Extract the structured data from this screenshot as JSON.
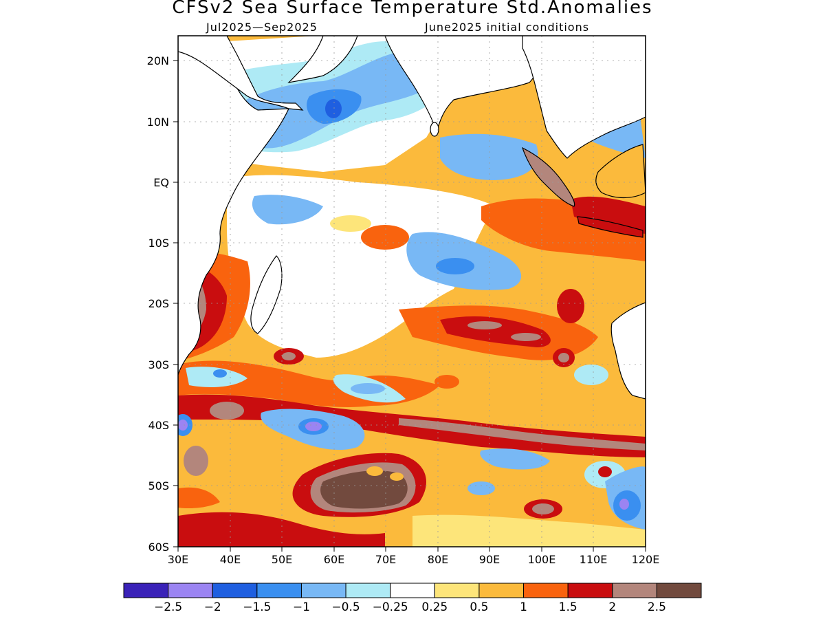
{
  "title": "CFSv2 Sea Surface Temperature Std.Anomalies",
  "subtitle_left": "Jul2025—Sep2025",
  "subtitle_right": "June2025 initial conditions",
  "lat_labels": [
    "20N",
    "10N",
    "EQ",
    "10S",
    "20S",
    "30S",
    "40S",
    "50S",
    "60S"
  ],
  "lon_labels": [
    "30E",
    "40E",
    "50E",
    "60E",
    "70E",
    "80E",
    "90E",
    "100E",
    "110E",
    "120E"
  ],
  "colorbar": {
    "colors": [
      "#3a22b8",
      "#9b84f2",
      "#1f5fe0",
      "#3a8ff0",
      "#78b8f5",
      "#aeeaf5",
      "#ffffff",
      "#fde57a",
      "#fbba3c",
      "#f9630e",
      "#c90d0f",
      "#b3867c",
      "#724a3e"
    ],
    "labels": [
      "−2.5",
      "−2",
      "−1.5",
      "−1",
      "−0.5",
      "−0.25",
      "0.25",
      "0.5",
      "1",
      "1.5",
      "2",
      "2.5"
    ]
  }
}
